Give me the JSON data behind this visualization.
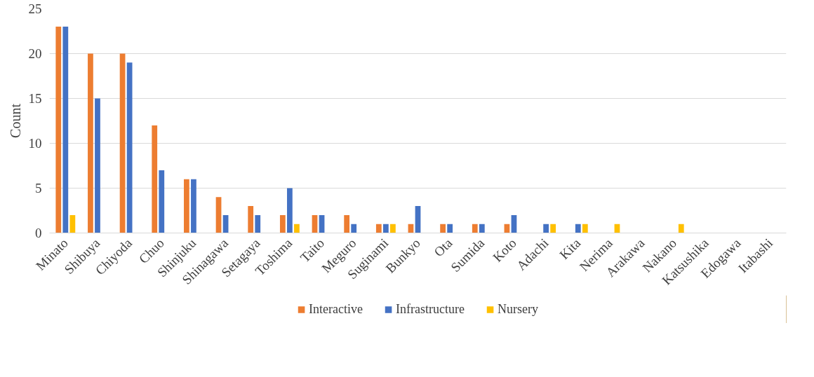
{
  "chart_data": {
    "type": "bar",
    "ylabel": "Count",
    "categories": [
      "Minato",
      "Shibuya",
      "Chiyoda",
      "Chuo",
      "Shinjuku",
      "Shinagawa",
      "Setagaya",
      "Toshima",
      "Taito",
      "Meguro",
      "Suginami",
      "Bunkyo",
      "Ota",
      "Sumida",
      "Koto",
      "Adachi",
      "Kita",
      "Nerima",
      "Arakawa",
      "Nakano",
      "Katsushika",
      "Edogawa",
      "Itabashi"
    ],
    "series": [
      {
        "name": "Interactive",
        "color": "#ed7d31",
        "values": [
          23,
          20,
          20,
          12,
          6,
          4,
          3,
          2,
          2,
          2,
          1,
          1,
          1,
          1,
          1,
          0,
          0,
          0,
          0,
          0,
          0,
          0,
          0
        ]
      },
      {
        "name": "Infrastructure",
        "color": "#4472c4",
        "values": [
          23,
          15,
          19,
          7,
          6,
          2,
          2,
          5,
          2,
          1,
          1,
          3,
          1,
          1,
          2,
          1,
          1,
          0,
          0,
          0,
          0,
          0,
          0
        ]
      },
      {
        "name": "Nursery",
        "color": "#ffc000",
        "values": [
          2,
          0,
          0,
          0,
          0,
          0,
          0,
          1,
          0,
          0,
          1,
          0,
          0,
          0,
          0,
          1,
          1,
          1,
          0,
          1,
          0,
          0,
          0
        ]
      }
    ],
    "ylim": [
      0,
      25
    ],
    "yticks": [
      0,
      5,
      10,
      15,
      20,
      25
    ],
    "grid": "y",
    "legend": "bottom"
  }
}
